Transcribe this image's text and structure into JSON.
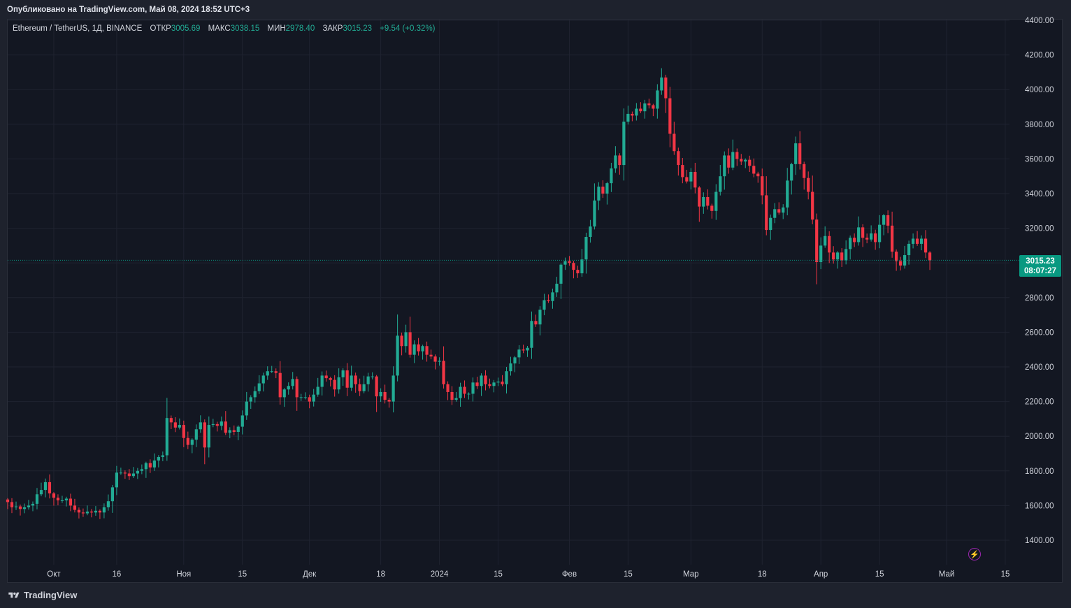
{
  "header": {
    "published": "Опубликовано на TradingView.com, Май 08, 2024 18:52 UTC+3"
  },
  "legend": {
    "symbol": "Ethereum / TetherUS, 1Д, BINANCE",
    "open_label": "ОТКР",
    "open_value": "3005.69",
    "high_label": "МАКС",
    "high_value": "3038.15",
    "low_label": "МИН",
    "low_value": "2978.40",
    "close_label": "ЗАКР",
    "close_value": "3015.23",
    "change": "+9.54 (+0.32%)"
  },
  "price_tag": {
    "price": "3015.23",
    "countdown": "08:07:27"
  },
  "footer": {
    "brand": "TradingView"
  },
  "colors": {
    "up": "#22ab94",
    "down": "#f23645",
    "background": "#131722",
    "grid": "#1f2330",
    "tag": "#089981"
  },
  "chart_data": {
    "type": "candlestick",
    "ylim": [
      1240,
      4400
    ],
    "y_ticks": [
      1400,
      1600,
      1800,
      2000,
      2200,
      2400,
      2600,
      2800,
      3000,
      3200,
      3400,
      3600,
      3800,
      4000,
      4200,
      4400
    ],
    "y_tick_labels": [
      "1400.00",
      "1600.00",
      "1800.00",
      "2000.00",
      "2200.00",
      "2400.00",
      "2600.00",
      "2800.00",
      "3000.00",
      "3200.00",
      "3400.00",
      "3600.00",
      "3800.00",
      "4000.00",
      "4200.00",
      "4400.00"
    ],
    "x_start": "2023-09-20",
    "x_end": "2024-05-16",
    "x_ticks": [
      {
        "date": "2023-10-01",
        "label": "Окт"
      },
      {
        "date": "2023-10-16",
        "label": "16"
      },
      {
        "date": "2023-11-01",
        "label": "Ноя"
      },
      {
        "date": "2023-11-15",
        "label": "15"
      },
      {
        "date": "2023-12-01",
        "label": "Дек"
      },
      {
        "date": "2023-12-18",
        "label": "18"
      },
      {
        "date": "2024-01-01",
        "label": "2024"
      },
      {
        "date": "2024-01-15",
        "label": "15"
      },
      {
        "date": "2024-02-01",
        "label": "Фев"
      },
      {
        "date": "2024-02-15",
        "label": "15"
      },
      {
        "date": "2024-03-01",
        "label": "Мар"
      },
      {
        "date": "2024-03-18",
        "label": "18"
      },
      {
        "date": "2024-04-01",
        "label": "Апр"
      },
      {
        "date": "2024-04-15",
        "label": "15"
      },
      {
        "date": "2024-05-01",
        "label": "Май"
      },
      {
        "date": "2024-05-15",
        "label": "15"
      }
    ],
    "last_price": 3015.23,
    "first_date": "2023-09-20",
    "closes": [
      1620,
      1590,
      1595,
      1580,
      1590,
      1600,
      1610,
      1665,
      1690,
      1735,
      1670,
      1645,
      1630,
      1630,
      1640,
      1600,
      1575,
      1560,
      1555,
      1565,
      1560,
      1570,
      1560,
      1590,
      1625,
      1705,
      1790,
      1790,
      1785,
      1770,
      1785,
      1800,
      1810,
      1845,
      1820,
      1860,
      1880,
      1890,
      2105,
      2080,
      2050,
      2065,
      1990,
      1950,
      1980,
      2040,
      2080,
      1935,
      2065,
      2070,
      2060,
      2085,
      2020,
      2035,
      2025,
      2055,
      2120,
      2200,
      2225,
      2260,
      2305,
      2350,
      2375,
      2375,
      2365,
      2225,
      2270,
      2290,
      2330,
      2225,
      2225,
      2225,
      2200,
      2240,
      2285,
      2350,
      2335,
      2325,
      2270,
      2340,
      2380,
      2280,
      2350,
      2300,
      2260,
      2300,
      2345,
      2345,
      2230,
      2255,
      2210,
      2200,
      2350,
      2580,
      2520,
      2600,
      2470,
      2530,
      2490,
      2520,
      2470,
      2460,
      2430,
      2435,
      2300,
      2255,
      2210,
      2220,
      2285,
      2245,
      2245,
      2310,
      2290,
      2350,
      2300,
      2290,
      2310,
      2315,
      2300,
      2375,
      2420,
      2455,
      2500,
      2495,
      2510,
      2665,
      2645,
      2730,
      2785,
      2780,
      2830,
      2880,
      2990,
      3010,
      3000,
      2960,
      2940,
      3020,
      3150,
      3210,
      3360,
      3440,
      3400,
      3460,
      3545,
      3620,
      3565,
      3815,
      3860,
      3850,
      3890,
      3875,
      3920,
      3910,
      3890,
      3995,
      4070,
      3950,
      3745,
      3645,
      3565,
      3495,
      3470,
      3525,
      3435,
      3325,
      3380,
      3330,
      3300,
      3410,
      3500,
      3620,
      3550,
      3640,
      3600,
      3585,
      3595,
      3560,
      3515,
      3500,
      3390,
      3190,
      3260,
      3310,
      3290,
      3320,
      3475,
      3570,
      3690,
      3570,
      3490,
      3410,
      3250,
      3005,
      3100,
      3155,
      3060,
      3020,
      3060,
      3015,
      3080,
      3145,
      3120,
      3205,
      3145,
      3135,
      3170,
      3120,
      3220,
      3275,
      3215,
      3065,
      3010,
      2985,
      3045,
      3110,
      3140,
      3110,
      3140,
      3060,
      3015
    ]
  }
}
